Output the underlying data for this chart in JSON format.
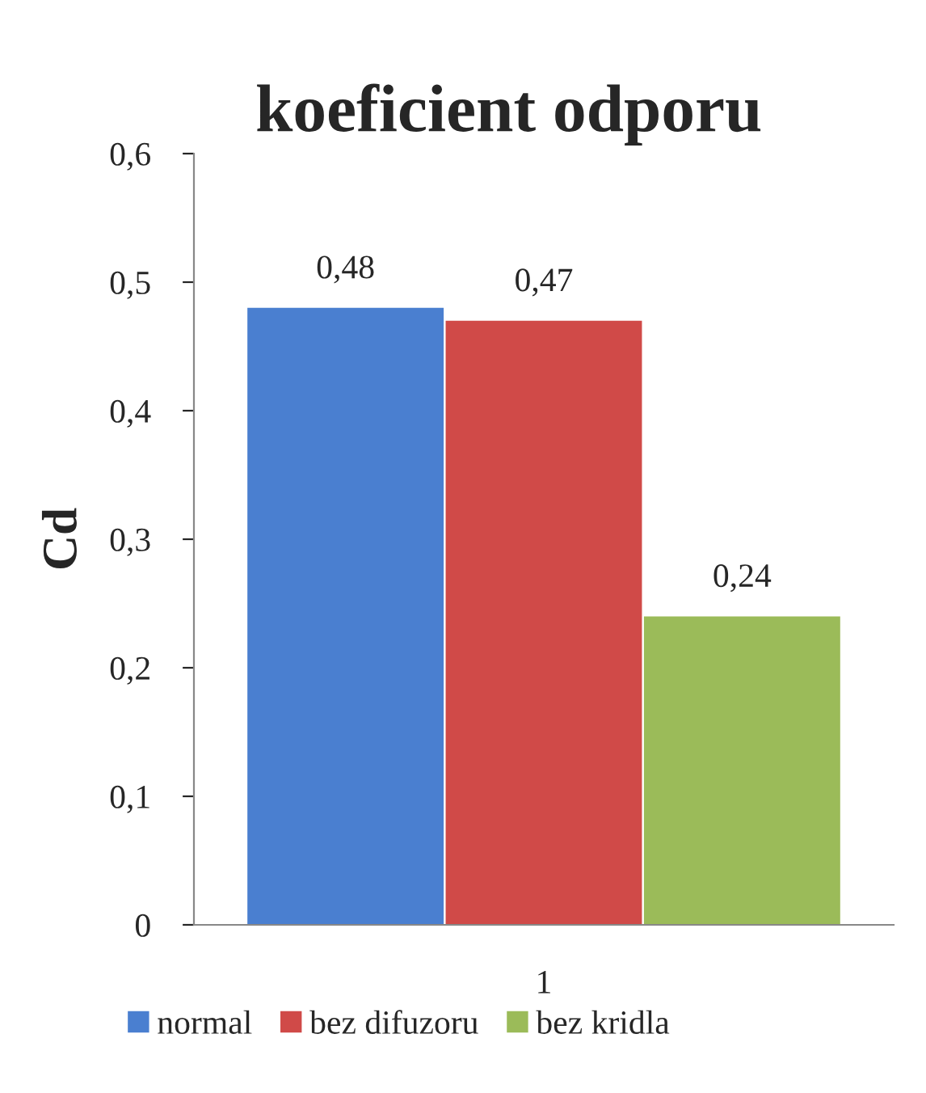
{
  "chart_data": {
    "type": "bar",
    "title": "koeficient odporu",
    "ylabel": "Cd",
    "categories": [
      "1"
    ],
    "series": [
      {
        "name": "normal",
        "color": "#4a7fd0",
        "values": [
          0.48
        ],
        "value_labels": [
          "0,48"
        ]
      },
      {
        "name": "bez difuzoru",
        "color": "#d04a48",
        "values": [
          0.47
        ],
        "value_labels": [
          "0,47"
        ]
      },
      {
        "name": "bez kridla",
        "color": "#9bbb59",
        "values": [
          0.24
        ],
        "value_labels": [
          "0,24"
        ]
      }
    ],
    "ylim": [
      0,
      0.6
    ],
    "yticks": [
      0,
      {
        "value": 0.1,
        "label": "0,1"
      },
      {
        "value": 0.2,
        "label": "0,2"
      },
      {
        "value": 0.3,
        "label": "0,3"
      },
      {
        "value": 0.4,
        "label": "0,4"
      },
      {
        "value": 0.5,
        "label": "0,5"
      },
      {
        "value": 0.6,
        "label": "0,6"
      }
    ],
    "grid": false,
    "legend": "bottom"
  }
}
